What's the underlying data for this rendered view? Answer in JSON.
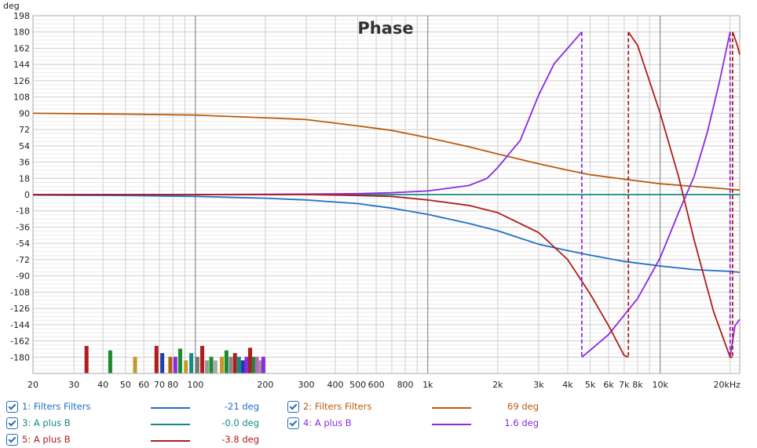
{
  "chart_data": {
    "type": "line",
    "title": "Phase",
    "ylabel": "deg",
    "xlabel": "",
    "x_unit": "Hz",
    "x_scale": "log",
    "xlim": [
      20,
      22000
    ],
    "ylim": [
      -198,
      198
    ],
    "x_ticks": [
      20,
      30,
      40,
      50,
      60,
      70,
      80,
      100,
      200,
      300,
      400,
      500,
      600,
      800,
      1000,
      2000,
      3000,
      4000,
      5000,
      6000,
      7000,
      8000,
      10000,
      20000
    ],
    "x_tick_labels": [
      "20",
      "30",
      "40",
      "50",
      "60",
      "70",
      "80",
      "100",
      "200",
      "300",
      "400",
      "500",
      "600",
      "800",
      "1k",
      "2k",
      "3k",
      "4k",
      "5k",
      "6k",
      "7k",
      "8k",
      "10k",
      "20kHz"
    ],
    "y_ticks": [
      198,
      180,
      162,
      144,
      126,
      108,
      90,
      72,
      54,
      36,
      18,
      0,
      -18,
      -36,
      -54,
      -72,
      -90,
      -108,
      -126,
      -144,
      -162,
      -180
    ],
    "grid": true,
    "legend_position": "bottom",
    "series": [
      {
        "name": "1: Filters Filters",
        "color": "#1f6fc5",
        "readout": "-21 deg",
        "points": [
          [
            20,
            -0.5
          ],
          [
            50,
            -1
          ],
          [
            100,
            -2
          ],
          [
            200,
            -4
          ],
          [
            300,
            -6
          ],
          [
            500,
            -10
          ],
          [
            700,
            -15
          ],
          [
            1000,
            -22
          ],
          [
            1500,
            -32
          ],
          [
            2000,
            -40
          ],
          [
            3000,
            -55
          ],
          [
            4000,
            -62
          ],
          [
            5000,
            -67
          ],
          [
            7000,
            -74
          ],
          [
            10000,
            -79
          ],
          [
            14000,
            -83
          ],
          [
            20000,
            -85
          ],
          [
            22000,
            -86
          ]
        ]
      },
      {
        "name": "2: Filters Filters",
        "color": "#b85c0f",
        "readout": "69 deg",
        "points": [
          [
            20,
            90
          ],
          [
            50,
            89
          ],
          [
            100,
            88
          ],
          [
            200,
            85
          ],
          [
            300,
            83
          ],
          [
            500,
            76
          ],
          [
            700,
            71
          ],
          [
            1000,
            63
          ],
          [
            1500,
            53
          ],
          [
            2000,
            45
          ],
          [
            3000,
            34
          ],
          [
            4000,
            27
          ],
          [
            5000,
            22
          ],
          [
            7000,
            17
          ],
          [
            10000,
            12
          ],
          [
            14000,
            9
          ],
          [
            20000,
            6
          ],
          [
            22000,
            5
          ]
        ]
      },
      {
        "name": "3: A plus B",
        "color": "#128c7e",
        "readout": "-0.0 deg",
        "points": [
          [
            20,
            0
          ],
          [
            22000,
            0
          ]
        ]
      },
      {
        "name": "4: A plus B",
        "color": "#8a2be2",
        "readout": "1.6 deg",
        "points": [
          [
            20,
            0
          ],
          [
            100,
            0
          ],
          [
            300,
            0.5
          ],
          [
            500,
            1
          ],
          [
            700,
            2
          ],
          [
            1000,
            4
          ],
          [
            1500,
            10
          ],
          [
            1800,
            18
          ],
          [
            2000,
            30
          ],
          [
            2500,
            60
          ],
          [
            3000,
            110
          ],
          [
            3500,
            145
          ],
          [
            4000,
            162
          ],
          [
            4600,
            180
          ],
          [
            4600,
            -180
          ],
          [
            6000,
            -155
          ],
          [
            8000,
            -115
          ],
          [
            10000,
            -70
          ],
          [
            12000,
            -20
          ],
          [
            14000,
            20
          ],
          [
            16000,
            70
          ],
          [
            18000,
            125
          ],
          [
            20000,
            180
          ],
          [
            20000,
            -180
          ],
          [
            21000,
            -145
          ],
          [
            22000,
            -138
          ]
        ]
      },
      {
        "name": "5: A plus B",
        "color": "#b01c1c",
        "readout": "-3.8 deg",
        "points": [
          [
            20,
            0
          ],
          [
            100,
            0
          ],
          [
            300,
            0
          ],
          [
            500,
            -1
          ],
          [
            700,
            -2
          ],
          [
            1000,
            -6
          ],
          [
            1500,
            -12
          ],
          [
            2000,
            -20
          ],
          [
            3000,
            -42
          ],
          [
            4000,
            -72
          ],
          [
            5000,
            -110
          ],
          [
            6000,
            -145
          ],
          [
            7000,
            -178
          ],
          [
            7300,
            -180
          ],
          [
            7300,
            180
          ],
          [
            8000,
            165
          ],
          [
            10000,
            90
          ],
          [
            12000,
            20
          ],
          [
            14000,
            -50
          ],
          [
            17000,
            -130
          ],
          [
            20000,
            -180
          ],
          [
            20500,
            -180
          ],
          [
            20500,
            180
          ],
          [
            21500,
            165
          ],
          [
            22000,
            155
          ]
        ]
      }
    ],
    "wraps": [
      {
        "x": 4600,
        "series": 3,
        "color": "#8a2be2"
      },
      {
        "x": 7300,
        "series": 4,
        "color": "#b01c1c"
      },
      {
        "x": 20000,
        "series": 3,
        "color": "#8a2be2"
      },
      {
        "x": 20500,
        "series": 4,
        "color": "#b01c1c"
      }
    ],
    "bars": [
      {
        "x": 34,
        "color": "#b01c1c",
        "h": 3
      },
      {
        "x": 43,
        "color": "#1b8a2e",
        "h": 2.5
      },
      {
        "x": 55,
        "color": "#c09a2a",
        "h": 1.8
      },
      {
        "x": 68,
        "color": "#b01c1c",
        "h": 3
      },
      {
        "x": 72,
        "color": "#1f3fae",
        "h": 2.2
      },
      {
        "x": 78,
        "color": "#b85c0f",
        "h": 1.8
      },
      {
        "x": 82,
        "color": "#8a2be2",
        "h": 1.8
      },
      {
        "x": 86,
        "color": "#1b8a2e",
        "h": 2.7
      },
      {
        "x": 91,
        "color": "#c09a2a",
        "h": 1.4
      },
      {
        "x": 96,
        "color": "#128c7e",
        "h": 2.2
      },
      {
        "x": 102,
        "color": "#777777",
        "h": 1.8
      },
      {
        "x": 107,
        "color": "#b01c1c",
        "h": 3
      },
      {
        "x": 112,
        "color": "#999999",
        "h": 1.4
      },
      {
        "x": 117,
        "color": "#1b8a2e",
        "h": 1.8
      },
      {
        "x": 122,
        "color": "#aaaaaa",
        "h": 1.4
      },
      {
        "x": 130,
        "color": "#c09a2a",
        "h": 1.8
      },
      {
        "x": 136,
        "color": "#1b8a2e",
        "h": 2.5
      },
      {
        "x": 142,
        "color": "#888888",
        "h": 1.8
      },
      {
        "x": 148,
        "color": "#b01c1c",
        "h": 2.2
      },
      {
        "x": 154,
        "color": "#128c7e",
        "h": 1.8
      },
      {
        "x": 160,
        "color": "#1f3fae",
        "h": 1.4
      },
      {
        "x": 166,
        "color": "#8a2be2",
        "h": 1.8
      },
      {
        "x": 172,
        "color": "#b01c1c",
        "h": 2.8
      },
      {
        "x": 178,
        "color": "#1b8a2e",
        "h": 1.8
      },
      {
        "x": 184,
        "color": "#c060c0",
        "h": 1.8
      },
      {
        "x": 190,
        "color": "#999999",
        "h": 1.4
      },
      {
        "x": 196,
        "color": "#8a2be2",
        "h": 1.8
      }
    ]
  }
}
